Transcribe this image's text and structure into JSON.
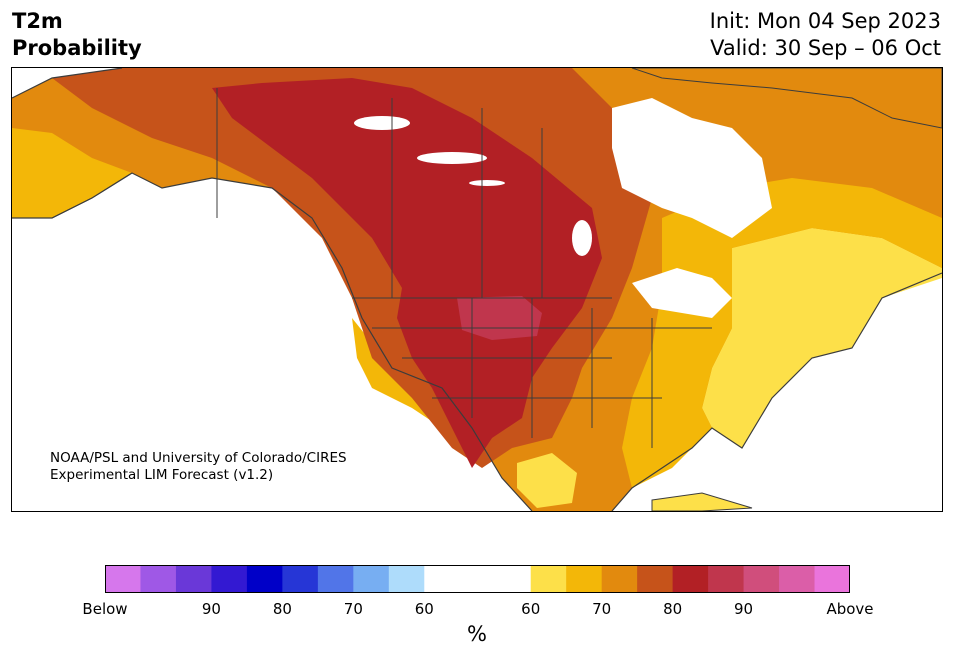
{
  "title": {
    "left_line1": "T2m",
    "left_line2": "Probability",
    "init": "Init: Mon 04 Sep 2023",
    "valid": "Valid: 30 Sep – 06 Oct"
  },
  "credit": {
    "line1": "NOAA/PSL and University of Colorado/CIRES",
    "line2": "Experimental LIM Forecast (v1.2)"
  },
  "colorbar": {
    "units": "%",
    "tick_labels": [
      "Below",
      "90",
      "80",
      "70",
      "60",
      "60",
      "70",
      "80",
      "90",
      "Above"
    ],
    "below_colors": [
      "#d677ec",
      "#9f58e6",
      "#6a38d8",
      "#3319d2",
      "#0000c8",
      "#2636d6",
      "#5175e8",
      "#77aef2",
      "#aedcfb"
    ],
    "neutral_color": "#ffffff",
    "above_colors": [
      "#fde049",
      "#f3b708",
      "#e28a0e",
      "#c6531a",
      "#b22025",
      "#c0364d",
      "#d04e7c",
      "#db5ea8",
      "#ea74dc"
    ]
  },
  "map": {
    "region": "North America",
    "colors": {
      "ocean": "#ffffff",
      "border": "#3c3c3c",
      "p60": "#fde049",
      "p65": "#f3b708",
      "p70": "#e28a0e",
      "p75": "#c6531a",
      "p80": "#b22025",
      "p85": "#c0364d"
    }
  }
}
